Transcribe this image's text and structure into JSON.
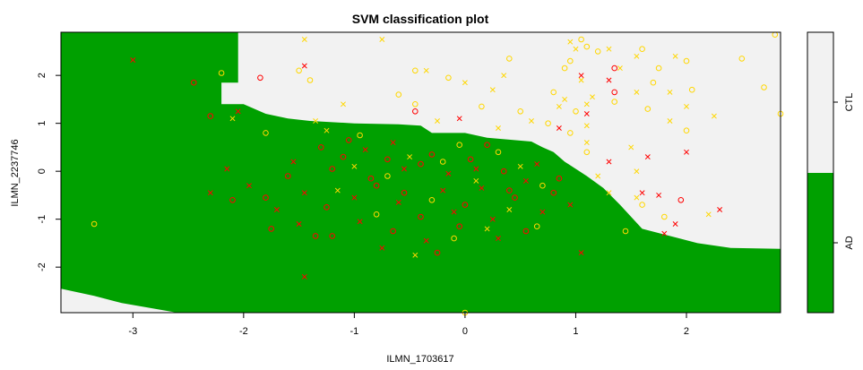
{
  "chart_data": {
    "type": "scatter",
    "title": "SVM classification plot",
    "xlabel": "ILMN_1703617",
    "ylabel": "ILMN_2237746",
    "xlim": [
      -3.65,
      2.85
    ],
    "ylim": [
      -2.95,
      2.9
    ],
    "xticks": [
      -3,
      -2,
      -1,
      0,
      1,
      2
    ],
    "yticks": [
      -2,
      -1,
      0,
      1,
      2
    ],
    "grid": false,
    "legend": "right colorbar",
    "classes": [
      {
        "name": "AD",
        "color": "#00a000"
      },
      {
        "name": "CTL",
        "color": "#f2f2f2"
      }
    ],
    "point_colors": {
      "c1": "#ff0000",
      "c2": "#ffd700"
    },
    "decision_region_AD": [
      [
        -3.65,
        2.9
      ],
      [
        -2.05,
        2.9
      ],
      [
        -2.05,
        1.85
      ],
      [
        -2.2,
        1.85
      ],
      [
        -2.2,
        1.4
      ],
      [
        -2.0,
        1.4
      ],
      [
        -1.8,
        1.2
      ],
      [
        -1.6,
        1.1
      ],
      [
        -1.4,
        1.05
      ],
      [
        -1.0,
        1.0
      ],
      [
        -0.6,
        0.98
      ],
      [
        -0.4,
        0.95
      ],
      [
        -0.3,
        0.8
      ],
      [
        0.0,
        0.8
      ],
      [
        0.2,
        0.7
      ],
      [
        0.6,
        0.62
      ],
      [
        0.7,
        0.5
      ],
      [
        0.8,
        0.4
      ],
      [
        0.9,
        0.2
      ],
      [
        1.0,
        0.05
      ],
      [
        1.1,
        -0.1
      ],
      [
        1.25,
        -0.35
      ],
      [
        1.4,
        -0.7
      ],
      [
        1.6,
        -1.2
      ],
      [
        1.85,
        -1.35
      ],
      [
        2.1,
        -1.5
      ],
      [
        2.4,
        -1.6
      ],
      [
        2.85,
        -1.62
      ],
      [
        2.85,
        -2.95
      ],
      [
        -2.6,
        -2.95
      ],
      [
        -3.1,
        -2.75
      ],
      [
        -3.35,
        -2.6
      ],
      [
        -3.65,
        -2.45
      ]
    ],
    "points": [
      {
        "x": -3.0,
        "y": 2.32,
        "m": "x",
        "c": "c1"
      },
      {
        "x": -2.45,
        "y": 1.85,
        "m": "o",
        "c": "c1"
      },
      {
        "x": -2.2,
        "y": 2.05,
        "m": "o",
        "c": "c2"
      },
      {
        "x": -1.85,
        "y": 1.95,
        "m": "o",
        "c": "c1"
      },
      {
        "x": -1.45,
        "y": 2.2,
        "m": "x",
        "c": "c1"
      },
      {
        "x": -1.45,
        "y": 2.75,
        "m": "x",
        "c": "c2"
      },
      {
        "x": -1.5,
        "y": 2.1,
        "m": "o",
        "c": "c2"
      },
      {
        "x": -1.4,
        "y": 1.9,
        "m": "o",
        "c": "c2"
      },
      {
        "x": -0.75,
        "y": 2.75,
        "m": "x",
        "c": "c2"
      },
      {
        "x": -0.45,
        "y": 2.1,
        "m": "o",
        "c": "c2"
      },
      {
        "x": -0.35,
        "y": 2.1,
        "m": "x",
        "c": "c2"
      },
      {
        "x": -0.15,
        "y": 1.95,
        "m": "o",
        "c": "c2"
      },
      {
        "x": 0.0,
        "y": 1.85,
        "m": "x",
        "c": "c2"
      },
      {
        "x": -0.6,
        "y": 1.6,
        "m": "o",
        "c": "c2"
      },
      {
        "x": -1.1,
        "y": 1.4,
        "m": "x",
        "c": "c2"
      },
      {
        "x": -0.45,
        "y": 1.4,
        "m": "o",
        "c": "c2"
      },
      {
        "x": 0.25,
        "y": 1.7,
        "m": "x",
        "c": "c2"
      },
      {
        "x": 0.4,
        "y": 2.35,
        "m": "o",
        "c": "c2"
      },
      {
        "x": 0.35,
        "y": 2.0,
        "m": "x",
        "c": "c2"
      },
      {
        "x": 0.15,
        "y": 1.35,
        "m": "o",
        "c": "c2"
      },
      {
        "x": 0.5,
        "y": 1.25,
        "m": "o",
        "c": "c2"
      },
      {
        "x": 0.6,
        "y": 1.05,
        "m": "x",
        "c": "c2"
      },
      {
        "x": 0.75,
        "y": 1.0,
        "m": "o",
        "c": "c2"
      },
      {
        "x": 0.85,
        "y": 1.35,
        "m": "x",
        "c": "c2"
      },
      {
        "x": 0.95,
        "y": 2.7,
        "m": "x",
        "c": "c2"
      },
      {
        "x": 0.95,
        "y": 2.3,
        "m": "o",
        "c": "c2"
      },
      {
        "x": 1.0,
        "y": 2.55,
        "m": "x",
        "c": "c2"
      },
      {
        "x": 1.05,
        "y": 2.75,
        "m": "o",
        "c": "c2"
      },
      {
        "x": 1.1,
        "y": 2.6,
        "m": "o",
        "c": "c2"
      },
      {
        "x": 1.2,
        "y": 2.5,
        "m": "o",
        "c": "c2"
      },
      {
        "x": 0.9,
        "y": 2.15,
        "m": "o",
        "c": "c2"
      },
      {
        "x": 0.8,
        "y": 1.65,
        "m": "o",
        "c": "c2"
      },
      {
        "x": 0.9,
        "y": 1.5,
        "m": "x",
        "c": "c2"
      },
      {
        "x": 1.05,
        "y": 1.9,
        "m": "x",
        "c": "c2"
      },
      {
        "x": 1.15,
        "y": 1.55,
        "m": "x",
        "c": "c2"
      },
      {
        "x": 1.1,
        "y": 1.4,
        "m": "x",
        "c": "c2"
      },
      {
        "x": 1.0,
        "y": 1.25,
        "m": "o",
        "c": "c2"
      },
      {
        "x": 1.1,
        "y": 0.95,
        "m": "x",
        "c": "c2"
      },
      {
        "x": 0.95,
        "y": 0.8,
        "m": "o",
        "c": "c2"
      },
      {
        "x": 1.1,
        "y": 0.6,
        "m": "x",
        "c": "c2"
      },
      {
        "x": 1.1,
        "y": 0.4,
        "m": "o",
        "c": "c2"
      },
      {
        "x": 1.3,
        "y": 2.55,
        "m": "x",
        "c": "c2"
      },
      {
        "x": 1.4,
        "y": 2.15,
        "m": "x",
        "c": "c2"
      },
      {
        "x": 1.55,
        "y": 2.4,
        "m": "x",
        "c": "c2"
      },
      {
        "x": 1.6,
        "y": 2.55,
        "m": "o",
        "c": "c2"
      },
      {
        "x": 1.75,
        "y": 2.15,
        "m": "o",
        "c": "c2"
      },
      {
        "x": 1.9,
        "y": 2.4,
        "m": "x",
        "c": "c2"
      },
      {
        "x": 2.0,
        "y": 2.3,
        "m": "o",
        "c": "c2"
      },
      {
        "x": 1.7,
        "y": 1.85,
        "m": "o",
        "c": "c2"
      },
      {
        "x": 1.85,
        "y": 1.65,
        "m": "x",
        "c": "c2"
      },
      {
        "x": 1.55,
        "y": 1.65,
        "m": "x",
        "c": "c2"
      },
      {
        "x": 1.35,
        "y": 1.45,
        "m": "o",
        "c": "c2"
      },
      {
        "x": 1.65,
        "y": 1.3,
        "m": "o",
        "c": "c2"
      },
      {
        "x": 2.05,
        "y": 1.7,
        "m": "o",
        "c": "c2"
      },
      {
        "x": 2.0,
        "y": 1.35,
        "m": "x",
        "c": "c2"
      },
      {
        "x": 1.85,
        "y": 1.05,
        "m": "x",
        "c": "c2"
      },
      {
        "x": 2.0,
        "y": 0.85,
        "m": "o",
        "c": "c2"
      },
      {
        "x": 2.25,
        "y": 1.15,
        "m": "x",
        "c": "c2"
      },
      {
        "x": 2.5,
        "y": 2.35,
        "m": "o",
        "c": "c2"
      },
      {
        "x": 2.8,
        "y": 2.85,
        "m": "o",
        "c": "c2"
      },
      {
        "x": 2.7,
        "y": 1.75,
        "m": "o",
        "c": "c2"
      },
      {
        "x": 2.85,
        "y": 1.2,
        "m": "o",
        "c": "c2"
      },
      {
        "x": 1.5,
        "y": 0.5,
        "m": "x",
        "c": "c2"
      },
      {
        "x": 1.55,
        "y": 0.0,
        "m": "x",
        "c": "c2"
      },
      {
        "x": 1.3,
        "y": -0.45,
        "m": "x",
        "c": "c2"
      },
      {
        "x": 1.55,
        "y": -0.55,
        "m": "x",
        "c": "c2"
      },
      {
        "x": 1.6,
        "y": -0.7,
        "m": "o",
        "c": "c2"
      },
      {
        "x": 1.8,
        "y": -0.95,
        "m": "o",
        "c": "c2"
      },
      {
        "x": 2.2,
        "y": -0.9,
        "m": "x",
        "c": "c2"
      },
      {
        "x": 1.45,
        "y": -1.25,
        "m": "o",
        "c": "c2"
      },
      {
        "x": 1.2,
        "y": -0.1,
        "m": "x",
        "c": "c2"
      },
      {
        "x": 1.05,
        "y": 2.0,
        "m": "x",
        "c": "c1"
      },
      {
        "x": 1.1,
        "y": 1.2,
        "m": "x",
        "c": "c1"
      },
      {
        "x": 1.35,
        "y": 2.15,
        "m": "o",
        "c": "c1"
      },
      {
        "x": 1.35,
        "y": 1.65,
        "m": "o",
        "c": "c1"
      },
      {
        "x": 1.3,
        "y": 1.9,
        "m": "x",
        "c": "c1"
      },
      {
        "x": -0.05,
        "y": 1.1,
        "m": "x",
        "c": "c1"
      },
      {
        "x": -0.45,
        "y": 1.25,
        "m": "o",
        "c": "c1"
      },
      {
        "x": 0.85,
        "y": 0.9,
        "m": "x",
        "c": "c1"
      },
      {
        "x": 1.3,
        "y": 0.2,
        "m": "x",
        "c": "c1"
      },
      {
        "x": 1.65,
        "y": 0.3,
        "m": "x",
        "c": "c1"
      },
      {
        "x": 2.0,
        "y": 0.4,
        "m": "x",
        "c": "c1"
      },
      {
        "x": 1.6,
        "y": -0.45,
        "m": "x",
        "c": "c1"
      },
      {
        "x": 1.75,
        "y": -0.5,
        "m": "x",
        "c": "c1"
      },
      {
        "x": 1.95,
        "y": -0.6,
        "m": "o",
        "c": "c1"
      },
      {
        "x": 1.9,
        "y": -1.1,
        "m": "x",
        "c": "c1"
      },
      {
        "x": 1.8,
        "y": -1.3,
        "m": "x",
        "c": "c1"
      },
      {
        "x": 2.3,
        "y": -0.8,
        "m": "x",
        "c": "c1"
      },
      {
        "x": 1.05,
        "y": -1.7,
        "m": "x",
        "c": "c1"
      },
      {
        "x": -2.05,
        "y": 1.25,
        "m": "x",
        "c": "c1"
      },
      {
        "x": -2.3,
        "y": 1.15,
        "m": "o",
        "c": "c1"
      },
      {
        "x": -2.15,
        "y": 0.05,
        "m": "x",
        "c": "c1"
      },
      {
        "x": -2.3,
        "y": -0.45,
        "m": "x",
        "c": "c1"
      },
      {
        "x": -2.1,
        "y": -0.6,
        "m": "o",
        "c": "c1"
      },
      {
        "x": -1.95,
        "y": -0.3,
        "m": "x",
        "c": "c1"
      },
      {
        "x": -1.8,
        "y": -0.55,
        "m": "o",
        "c": "c1"
      },
      {
        "x": -3.35,
        "y": -1.1,
        "m": "o",
        "c": "c2"
      },
      {
        "x": -1.45,
        "y": -2.2,
        "m": "x",
        "c": "c1"
      },
      {
        "x": -2.1,
        "y": 1.1,
        "m": "x",
        "c": "c2"
      },
      {
        "x": -1.8,
        "y": 0.8,
        "m": "o",
        "c": "c2"
      },
      {
        "x": -1.35,
        "y": 1.05,
        "m": "x",
        "c": "c2"
      },
      {
        "x": -0.25,
        "y": 1.05,
        "m": "x",
        "c": "c2"
      },
      {
        "x": 0.3,
        "y": 0.9,
        "m": "x",
        "c": "c2"
      },
      {
        "x": -0.95,
        "y": 0.75,
        "m": "o",
        "c": "c2"
      },
      {
        "x": -1.25,
        "y": 0.85,
        "m": "x",
        "c": "c2"
      },
      {
        "x": -0.05,
        "y": 0.55,
        "m": "o",
        "c": "c2"
      },
      {
        "x": -0.5,
        "y": 0.3,
        "m": "x",
        "c": "c2"
      },
      {
        "x": 0.3,
        "y": 0.4,
        "m": "o",
        "c": "c2"
      },
      {
        "x": -1.0,
        "y": 0.1,
        "m": "x",
        "c": "c2"
      },
      {
        "x": -0.2,
        "y": 0.2,
        "m": "o",
        "c": "c2"
      },
      {
        "x": 0.5,
        "y": 0.1,
        "m": "x",
        "c": "c2"
      },
      {
        "x": -0.7,
        "y": -0.1,
        "m": "o",
        "c": "c2"
      },
      {
        "x": 0.1,
        "y": -0.2,
        "m": "x",
        "c": "c2"
      },
      {
        "x": 0.7,
        "y": -0.3,
        "m": "o",
        "c": "c2"
      },
      {
        "x": -1.15,
        "y": -0.4,
        "m": "x",
        "c": "c2"
      },
      {
        "x": -0.3,
        "y": -0.6,
        "m": "o",
        "c": "c2"
      },
      {
        "x": 0.4,
        "y": -0.8,
        "m": "x",
        "c": "c2"
      },
      {
        "x": -0.8,
        "y": -0.9,
        "m": "o",
        "c": "c2"
      },
      {
        "x": 0.2,
        "y": -1.2,
        "m": "x",
        "c": "c2"
      },
      {
        "x": -0.1,
        "y": -1.4,
        "m": "o",
        "c": "c2"
      },
      {
        "x": -0.45,
        "y": -1.75,
        "m": "x",
        "c": "c2"
      },
      {
        "x": 0.65,
        "y": -1.15,
        "m": "o",
        "c": "c2"
      },
      {
        "x": -1.3,
        "y": 0.5,
        "m": "o",
        "c": "c1"
      },
      {
        "x": -1.1,
        "y": 0.3,
        "m": "o",
        "c": "c1"
      },
      {
        "x": -0.9,
        "y": 0.45,
        "m": "x",
        "c": "c1"
      },
      {
        "x": -0.7,
        "y": 0.25,
        "m": "o",
        "c": "c1"
      },
      {
        "x": -0.55,
        "y": 0.05,
        "m": "x",
        "c": "c1"
      },
      {
        "x": -0.3,
        "y": 0.35,
        "m": "o",
        "c": "c1"
      },
      {
        "x": -0.15,
        "y": -0.05,
        "m": "x",
        "c": "c1"
      },
      {
        "x": 0.05,
        "y": 0.25,
        "m": "o",
        "c": "c1"
      },
      {
        "x": 0.15,
        "y": -0.35,
        "m": "x",
        "c": "c1"
      },
      {
        "x": 0.35,
        "y": 0.0,
        "m": "o",
        "c": "c1"
      },
      {
        "x": 0.55,
        "y": -0.2,
        "m": "x",
        "c": "c1"
      },
      {
        "x": 0.8,
        "y": -0.45,
        "m": "o",
        "c": "c1"
      },
      {
        "x": 0.95,
        "y": -0.7,
        "m": "x",
        "c": "c1"
      },
      {
        "x": -1.6,
        "y": -0.1,
        "m": "o",
        "c": "c1"
      },
      {
        "x": -1.45,
        "y": -0.45,
        "m": "x",
        "c": "c1"
      },
      {
        "x": -1.25,
        "y": -0.75,
        "m": "o",
        "c": "c1"
      },
      {
        "x": -1.0,
        "y": -0.55,
        "m": "x",
        "c": "c1"
      },
      {
        "x": -0.8,
        "y": -0.3,
        "m": "o",
        "c": "c1"
      },
      {
        "x": -0.6,
        "y": -0.65,
        "m": "x",
        "c": "c1"
      },
      {
        "x": -0.4,
        "y": -0.95,
        "m": "o",
        "c": "c1"
      },
      {
        "x": -0.2,
        "y": -0.4,
        "m": "x",
        "c": "c1"
      },
      {
        "x": 0.0,
        "y": -0.7,
        "m": "o",
        "c": "c1"
      },
      {
        "x": 0.25,
        "y": -1.0,
        "m": "x",
        "c": "c1"
      },
      {
        "x": 0.45,
        "y": -0.55,
        "m": "o",
        "c": "c1"
      },
      {
        "x": 0.7,
        "y": -0.85,
        "m": "x",
        "c": "c1"
      },
      {
        "x": -1.75,
        "y": -1.2,
        "m": "o",
        "c": "c1"
      },
      {
        "x": -1.5,
        "y": -1.1,
        "m": "x",
        "c": "c1"
      },
      {
        "x": -1.2,
        "y": -1.35,
        "m": "o",
        "c": "c1"
      },
      {
        "x": -0.95,
        "y": -1.05,
        "m": "x",
        "c": "c1"
      },
      {
        "x": -0.65,
        "y": -1.25,
        "m": "o",
        "c": "c1"
      },
      {
        "x": -0.35,
        "y": -1.45,
        "m": "x",
        "c": "c1"
      },
      {
        "x": -0.05,
        "y": -1.15,
        "m": "o",
        "c": "c1"
      },
      {
        "x": 0.3,
        "y": -1.4,
        "m": "x",
        "c": "c1"
      },
      {
        "x": 0.55,
        "y": -1.25,
        "m": "o",
        "c": "c1"
      },
      {
        "x": -1.35,
        "y": -1.35,
        "m": "o",
        "c": "c1"
      },
      {
        "x": -0.75,
        "y": -1.6,
        "m": "x",
        "c": "c1"
      },
      {
        "x": -0.25,
        "y": -1.7,
        "m": "o",
        "c": "c1"
      },
      {
        "x": -1.55,
        "y": 0.2,
        "m": "x",
        "c": "c1"
      },
      {
        "x": -1.2,
        "y": 0.05,
        "m": "o",
        "c": "c1"
      },
      {
        "x": -0.85,
        "y": -0.15,
        "m": "o",
        "c": "c1"
      },
      {
        "x": -0.4,
        "y": 0.15,
        "m": "o",
        "c": "c1"
      },
      {
        "x": 0.1,
        "y": 0.05,
        "m": "x",
        "c": "c1"
      },
      {
        "x": 0.4,
        "y": -0.4,
        "m": "o",
        "c": "c1"
      },
      {
        "x": 0.65,
        "y": 0.15,
        "m": "x",
        "c": "c1"
      },
      {
        "x": 0.85,
        "y": -0.15,
        "m": "o",
        "c": "c1"
      },
      {
        "x": -1.7,
        "y": -0.8,
        "m": "x",
        "c": "c1"
      },
      {
        "x": -0.55,
        "y": -0.45,
        "m": "o",
        "c": "c1"
      },
      {
        "x": -0.1,
        "y": -0.85,
        "m": "x",
        "c": "c1"
      },
      {
        "x": 0.2,
        "y": 0.55,
        "m": "o",
        "c": "c1"
      },
      {
        "x": -0.65,
        "y": 0.6,
        "m": "x",
        "c": "c1"
      },
      {
        "x": -1.05,
        "y": 0.65,
        "m": "o",
        "c": "c1"
      },
      {
        "x": 0.0,
        "y": -2.95,
        "m": "o",
        "c": "c2"
      }
    ]
  }
}
